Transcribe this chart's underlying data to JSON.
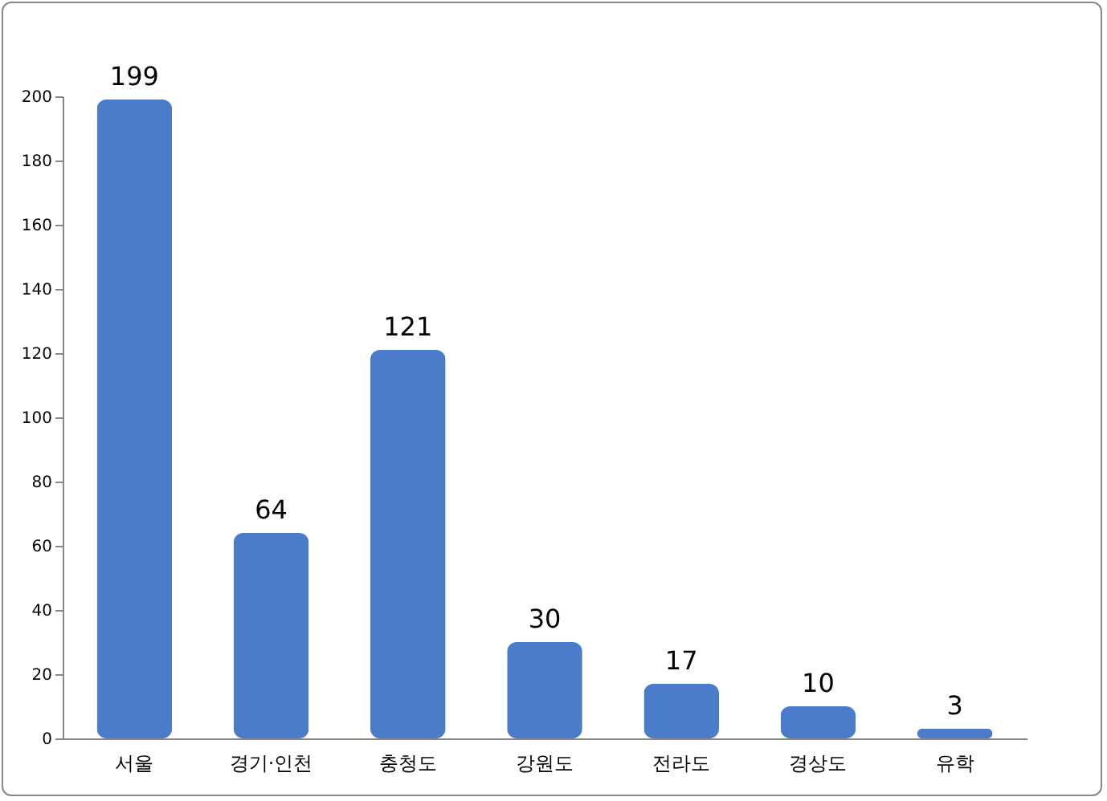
{
  "chart_data": {
    "type": "bar",
    "categories": [
      "서울",
      "경기·인천",
      "충청도",
      "강원도",
      "전라도",
      "경상도",
      "유학"
    ],
    "values": [
      199,
      64,
      121,
      30,
      17,
      10,
      3
    ],
    "color": "#4a7cc9",
    "ylim": [
      0,
      200
    ],
    "yticks": [
      0,
      20,
      40,
      60,
      80,
      100,
      120,
      140,
      160,
      180,
      200
    ],
    "data_labels": true,
    "grid": false
  }
}
